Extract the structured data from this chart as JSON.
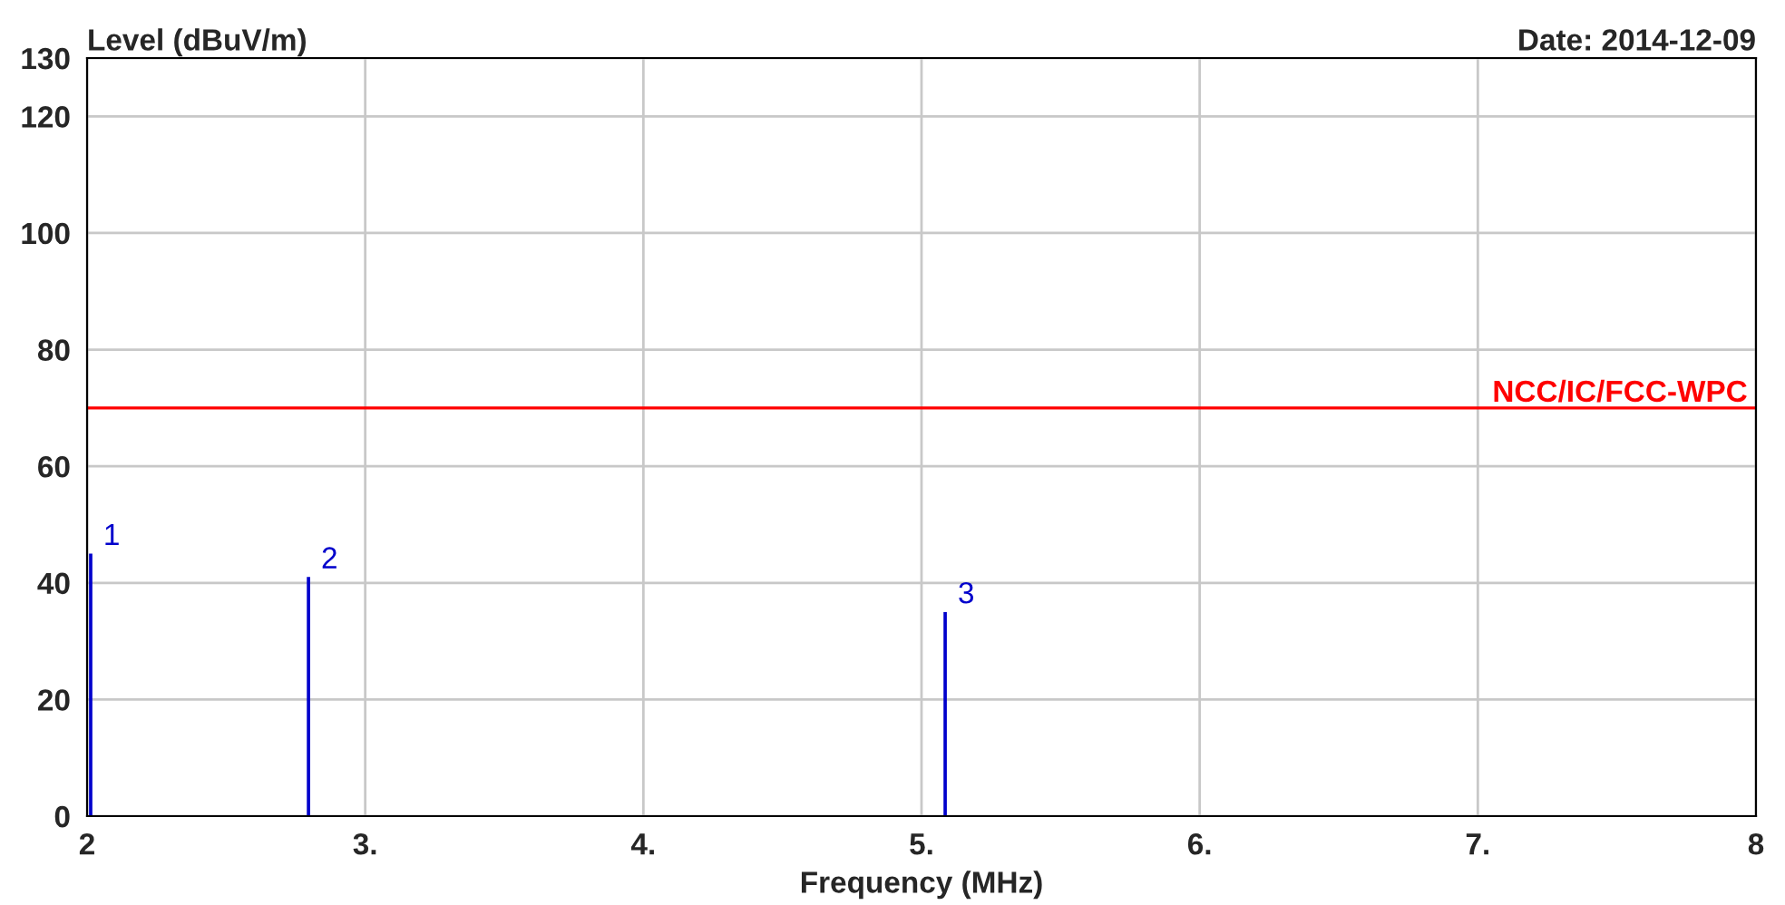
{
  "chart_data": {
    "type": "bar",
    "x": [
      2.013,
      2.796,
      5.085
    ],
    "values": [
      45,
      41,
      35
    ],
    "color": "#0000cc",
    "xlabel": "Frequency (MHz)",
    "ylabel": "Level (dBuV/m)",
    "annotations": [
      "Date: 2014-12-09",
      {
        "text": "1",
        "x": 2.013,
        "y": 45
      },
      {
        "text": "2",
        "x": 2.796,
        "y": 41
      },
      {
        "text": "3",
        "x": 5.085,
        "y": 35
      }
    ],
    "xlim": [
      2,
      8
    ],
    "xticks": [
      2,
      {
        "value": 3,
        "label": "3."
      },
      {
        "value": 4,
        "label": "4."
      },
      {
        "value": 5,
        "label": "5."
      },
      {
        "value": 6,
        "label": "6."
      },
      {
        "value": 7,
        "label": "7."
      },
      8
    ],
    "ylim": [
      0,
      130
    ],
    "yticks": [
      0,
      20,
      40,
      60,
      80,
      100,
      120,
      130
    ],
    "ref_lines": [
      {
        "axis": "y",
        "value": 70,
        "label": "NCC/IC/FCC-WPC",
        "color": "#ff0000"
      }
    ],
    "grid": true
  }
}
